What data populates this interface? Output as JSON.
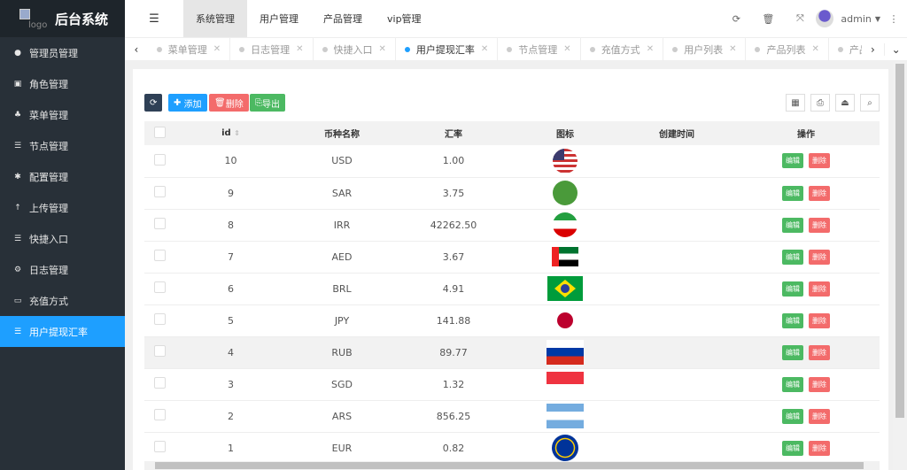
{
  "logo": {
    "alt": "logo",
    "title": "后台系统"
  },
  "sidebar": {
    "items": [
      {
        "label": "管理员管理",
        "icon": "user-icon"
      },
      {
        "label": "角色管理",
        "icon": "role-icon"
      },
      {
        "label": "菜单管理",
        "icon": "tree-icon"
      },
      {
        "label": "节点管理",
        "icon": "list-icon"
      },
      {
        "label": "配置管理",
        "icon": "gear-icon"
      },
      {
        "label": "上传管理",
        "icon": "upload-icon"
      },
      {
        "label": "快捷入口",
        "icon": "list-icon"
      },
      {
        "label": "日志管理",
        "icon": "log-icon"
      },
      {
        "label": "充值方式",
        "icon": "wallet-icon"
      },
      {
        "label": "用户提现汇率",
        "icon": "list-icon",
        "active": true
      }
    ]
  },
  "header": {
    "nav": [
      "系统管理",
      "用户管理",
      "产品管理",
      "vip管理"
    ],
    "user": "admin"
  },
  "tabs": [
    {
      "label": "菜单管理"
    },
    {
      "label": "日志管理"
    },
    {
      "label": "快捷入口"
    },
    {
      "label": "用户提现汇率",
      "active": true
    },
    {
      "label": "节点管理"
    },
    {
      "label": "充值方式"
    },
    {
      "label": "用户列表"
    },
    {
      "label": "产品列表"
    },
    {
      "label": "产品订单"
    }
  ],
  "toolbar": {
    "add": "添加",
    "delete": "删除",
    "export": "导出"
  },
  "table": {
    "columns": [
      "id",
      "币种名称",
      "汇率",
      "图标",
      "创建时间",
      "操作"
    ],
    "edit_label": "编辑",
    "delete_label": "删除",
    "rows": [
      {
        "id": "10",
        "name": "USD",
        "rate": "1.00",
        "flag": "us"
      },
      {
        "id": "9",
        "name": "SAR",
        "rate": "3.75",
        "flag": "sa"
      },
      {
        "id": "8",
        "name": "IRR",
        "rate": "42262.50",
        "flag": "ir"
      },
      {
        "id": "7",
        "name": "AED",
        "rate": "3.67",
        "flag": "ae"
      },
      {
        "id": "6",
        "name": "BRL",
        "rate": "4.91",
        "flag": "br"
      },
      {
        "id": "5",
        "name": "JPY",
        "rate": "141.88",
        "flag": "jp"
      },
      {
        "id": "4",
        "name": "RUB",
        "rate": "89.77",
        "flag": "ru"
      },
      {
        "id": "3",
        "name": "SGD",
        "rate": "1.32",
        "flag": "sg"
      },
      {
        "id": "2",
        "name": "ARS",
        "rate": "856.25",
        "flag": "ar"
      },
      {
        "id": "1",
        "name": "EUR",
        "rate": "0.82",
        "flag": "eu"
      }
    ]
  },
  "colors": {
    "sidebar": "#283038",
    "active": "#1e9fff",
    "add": "#1e9fff",
    "delete": "#f36b6b",
    "export": "#4cb962"
  }
}
